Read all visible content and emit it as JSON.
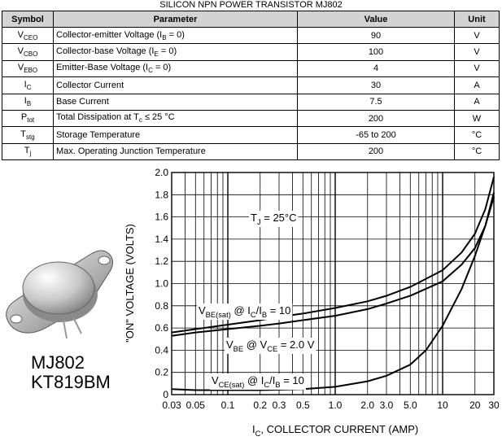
{
  "title": "SILICON NPN POWER TRANSISTOR MJ802",
  "table": {
    "headers": [
      "Symbol",
      "Parameter",
      "Value",
      "Unit"
    ],
    "rows": [
      {
        "sym": "V",
        "sym_sub": "CEO",
        "param": "Collector-emitter Voltage (I",
        "param_sub": "B",
        "param_tail": " = 0)",
        "value": "90",
        "unit": "V"
      },
      {
        "sym": "V",
        "sym_sub": "CBO",
        "param": "Collector-base Voltage (I",
        "param_sub": "E",
        "param_tail": " = 0)",
        "value": "100",
        "unit": "V"
      },
      {
        "sym": "V",
        "sym_sub": "EBO",
        "param": "Emitter-Base Voltage (I",
        "param_sub": "C",
        "param_tail": " = 0)",
        "value": "4",
        "unit": "V"
      },
      {
        "sym": "I",
        "sym_sub": "C",
        "param": "Collector Current",
        "param_sub": "",
        "param_tail": "",
        "value": "30",
        "unit": "A"
      },
      {
        "sym": "I",
        "sym_sub": "B",
        "param": "Base Current",
        "param_sub": "",
        "param_tail": "",
        "value": "7.5",
        "unit": "A"
      },
      {
        "sym": "P",
        "sym_sub": "tot",
        "param": "Total Dissipation at T",
        "param_sub": "c",
        "param_tail": " ≤ 25 °C",
        "value": "200",
        "unit": "W"
      },
      {
        "sym": "T",
        "sym_sub": "stg",
        "param": "Storage Temperature",
        "param_sub": "",
        "param_tail": "",
        "value": "-65 to 200",
        "unit": "°C"
      },
      {
        "sym": "T",
        "sym_sub": "j",
        "param": "Max. Operating Junction Temperature",
        "param_sub": "",
        "param_tail": "",
        "value": "200",
        "unit": "°C"
      }
    ]
  },
  "part_numbers": [
    "MJ802",
    "KT819BM"
  ],
  "chart_data": {
    "type": "line",
    "x_scale": "log",
    "xlim": [
      0.03,
      30
    ],
    "ylim": [
      0,
      2.0
    ],
    "grid": true,
    "x_ticks": [
      "0.03",
      "0.05",
      "0.1",
      "0.2",
      "0.3",
      "0.5",
      "1.0",
      "2.0",
      "3.0",
      "5.0",
      "10",
      "20",
      "30"
    ],
    "x_tick_values": [
      0.03,
      0.05,
      0.1,
      0.2,
      0.3,
      0.5,
      1.0,
      2.0,
      3.0,
      5.0,
      10,
      20,
      30
    ],
    "y_ticks": [
      "0",
      "0.2",
      "0.4",
      "0.6",
      "0.8",
      "1.0",
      "1.2",
      "1.4",
      "1.6",
      "1.8",
      "2.0"
    ],
    "y_tick_values": [
      0,
      0.2,
      0.4,
      0.6,
      0.8,
      1.0,
      1.2,
      1.4,
      1.6,
      1.8,
      2.0
    ],
    "xlabel": {
      "main": "I",
      "sub": "C",
      "tail": ", COLLECTOR CURRENT (AMP)"
    },
    "ylabel": "\"ON\" VOLTAGE (VOLTS)",
    "annotations": {
      "tj": {
        "main": "T",
        "sub": "J",
        "tail": " = 25°C"
      },
      "vbe_sat": {
        "p1": "V",
        "s1": "BE(sat)",
        "p2": " @ I",
        "s2": "C",
        "p3": "/I",
        "s3": "B",
        "p4": " = 10"
      },
      "vbe": {
        "p1": "V",
        "s1": "BE",
        "p2": " @ V",
        "s2": "CE",
        "p3": " = 2.0 V"
      },
      "vce_sat": {
        "p1": "V",
        "s1": "CE(sat)",
        "p2": " @ I",
        "s2": "C",
        "p3": "/I",
        "s3": "B",
        "p4": " = 10"
      }
    },
    "series": [
      {
        "key": "vbe_sat",
        "points": [
          [
            0.03,
            0.56
          ],
          [
            0.05,
            0.59
          ],
          [
            0.1,
            0.63
          ],
          [
            0.2,
            0.67
          ],
          [
            0.3,
            0.7
          ],
          [
            0.5,
            0.73
          ],
          [
            1.0,
            0.78
          ],
          [
            2.0,
            0.84
          ],
          [
            3.0,
            0.89
          ],
          [
            5.0,
            0.97
          ],
          [
            10,
            1.12
          ],
          [
            15,
            1.28
          ],
          [
            20,
            1.45
          ],
          [
            25,
            1.67
          ],
          [
            30,
            1.96
          ]
        ]
      },
      {
        "key": "vbe",
        "points": [
          [
            0.03,
            0.53
          ],
          [
            0.05,
            0.56
          ],
          [
            0.1,
            0.59
          ],
          [
            0.2,
            0.62
          ],
          [
            0.3,
            0.64
          ],
          [
            0.5,
            0.67
          ],
          [
            1.0,
            0.71
          ],
          [
            2.0,
            0.77
          ],
          [
            3.0,
            0.82
          ],
          [
            5.0,
            0.89
          ],
          [
            10,
            1.02
          ],
          [
            15,
            1.17
          ],
          [
            20,
            1.32
          ],
          [
            25,
            1.52
          ],
          [
            30,
            1.78
          ]
        ]
      },
      {
        "key": "vce_sat",
        "points": [
          [
            0.03,
            0.05
          ],
          [
            0.05,
            0.04
          ],
          [
            0.1,
            0.04
          ],
          [
            0.2,
            0.04
          ],
          [
            0.5,
            0.05
          ],
          [
            1.0,
            0.07
          ],
          [
            2.0,
            0.12
          ],
          [
            3.0,
            0.17
          ],
          [
            5.0,
            0.27
          ],
          [
            7.0,
            0.4
          ],
          [
            10,
            0.62
          ],
          [
            15,
            0.95
          ],
          [
            20,
            1.25
          ],
          [
            25,
            1.52
          ],
          [
            30,
            1.82
          ]
        ]
      }
    ]
  }
}
